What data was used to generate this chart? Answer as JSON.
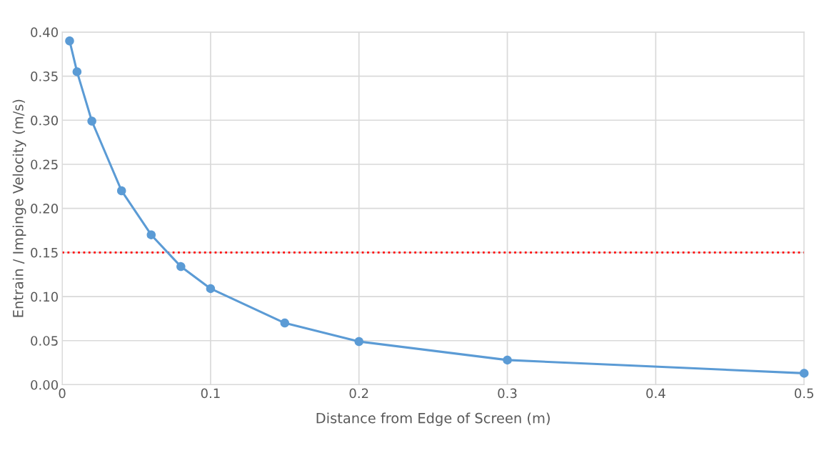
{
  "chart_data": {
    "type": "line",
    "xlabel": "Distance from Edge of Screen (m)",
    "ylabel": "Entrain / Impinge Velocity (m/s)",
    "x": [
      0.005,
      0.01,
      0.02,
      0.04,
      0.06,
      0.08,
      0.1,
      0.15,
      0.2,
      0.3,
      0.5
    ],
    "series": [
      {
        "color": "#5b9bd5",
        "values": [
          0.39,
          0.355,
          0.299,
          0.22,
          0.17,
          0.134,
          0.109,
          0.07,
          0.049,
          0.028,
          0.013
        ]
      }
    ],
    "xlim": [
      0,
      0.5
    ],
    "xticks": [
      0,
      0.1,
      0.2,
      0.3,
      0.4,
      0.5
    ],
    "ylim": [
      0,
      0.4
    ],
    "yticks": [
      {
        "value": 0,
        "label": "0.00"
      },
      {
        "value": 0.05,
        "label": "0.05"
      },
      {
        "value": 0.1,
        "label": "0.10"
      },
      {
        "value": 0.15,
        "label": "0.15"
      },
      {
        "value": 0.2,
        "label": "0.20"
      },
      {
        "value": 0.25,
        "label": "0.25"
      },
      {
        "value": 0.3,
        "label": "0.30"
      },
      {
        "value": 0.35,
        "label": "0.35"
      },
      {
        "value": 0.4,
        "label": "0.40"
      }
    ],
    "ref_lines": [
      {
        "axis": "y",
        "value": 0.15,
        "color": "#ff0000",
        "line_style": "dotted"
      }
    ],
    "grid": true,
    "marker": "circle",
    "line_style": "solid",
    "legend": false
  }
}
